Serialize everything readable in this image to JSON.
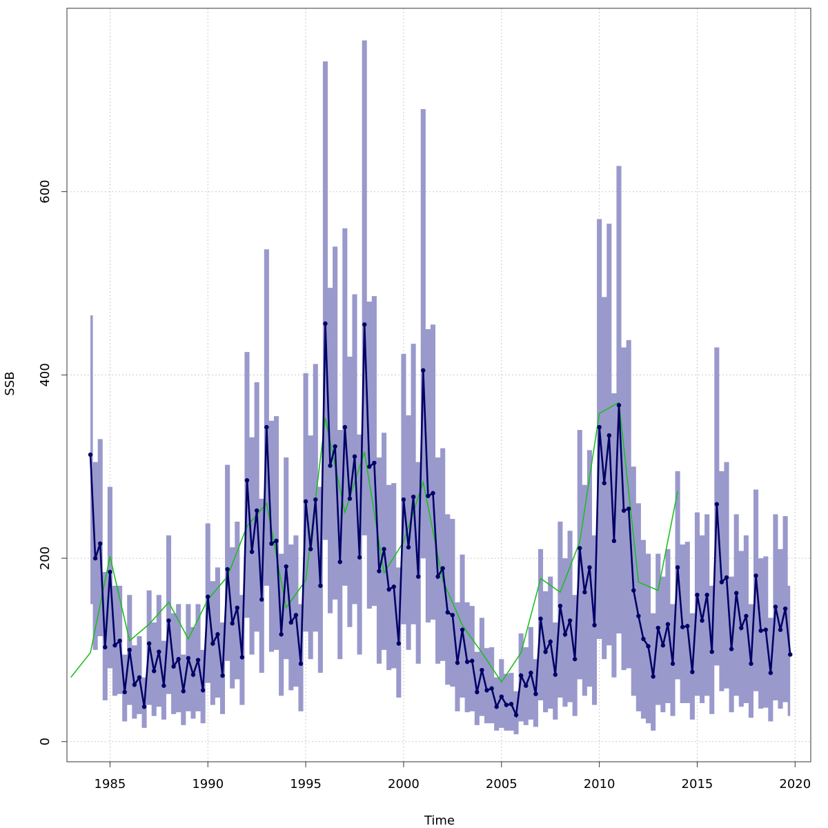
{
  "chart_data": {
    "type": "line",
    "xlabel": "Time",
    "ylabel": "SSB",
    "xlim": [
      1982.8,
      2020.8
    ],
    "ylim": [
      -22,
      800
    ],
    "x_ticks": [
      1985,
      1990,
      1995,
      2000,
      2005,
      2010,
      2015,
      2020
    ],
    "y_ticks": [
      0,
      200,
      400,
      600
    ],
    "grid": true,
    "colors": {
      "estimate": "#000066",
      "band": "#9999cc",
      "reference": "#1ebd1e",
      "grid": "#c8c8c8"
    },
    "series": [
      {
        "role": "estimate",
        "kind": "line+points",
        "x": [
          1984.0,
          1984.25,
          1984.5,
          1984.75,
          1985.0,
          1985.25,
          1985.5,
          1985.75,
          1986.0,
          1986.25,
          1986.5,
          1986.75,
          1987.0,
          1987.25,
          1987.5,
          1987.75,
          1988.0,
          1988.25,
          1988.5,
          1988.75,
          1989.0,
          1989.25,
          1989.5,
          1989.75,
          1990.0,
          1990.25,
          1990.5,
          1990.75,
          1991.0,
          1991.25,
          1991.5,
          1991.75,
          1992.0,
          1992.25,
          1992.5,
          1992.75,
          1993.0,
          1993.25,
          1993.5,
          1993.75,
          1994.0,
          1994.25,
          1994.5,
          1994.75,
          1995.0,
          1995.25,
          1995.5,
          1995.75,
          1996.0,
          1996.25,
          1996.5,
          1996.75,
          1997.0,
          1997.25,
          1997.5,
          1997.75,
          1998.0,
          1998.25,
          1998.5,
          1998.75,
          1999.0,
          1999.25,
          1999.5,
          1999.75,
          2000.0,
          2000.25,
          2000.5,
          2000.75,
          2001.0,
          2001.25,
          2001.5,
          2001.75,
          2002.0,
          2002.25,
          2002.5,
          2002.75,
          2003.0,
          2003.25,
          2003.5,
          2003.75,
          2004.0,
          2004.25,
          2004.5,
          2004.75,
          2005.0,
          2005.25,
          2005.5,
          2005.75,
          2006.0,
          2006.25,
          2006.5,
          2006.75,
          2007.0,
          2007.25,
          2007.5,
          2007.75,
          2008.0,
          2008.25,
          2008.5,
          2008.75,
          2009.0,
          2009.25,
          2009.5,
          2009.75,
          2010.0,
          2010.25,
          2010.5,
          2010.75,
          2011.0,
          2011.25,
          2011.5,
          2011.75,
          2012.0,
          2012.25,
          2012.5,
          2012.75,
          2013.0,
          2013.25,
          2013.5,
          2013.75,
          2014.0,
          2014.25,
          2014.5,
          2014.75,
          2015.0,
          2015.25,
          2015.5,
          2015.75,
          2016.0,
          2016.25,
          2016.5,
          2016.75,
          2017.0,
          2017.25,
          2017.5,
          2017.75,
          2018.0,
          2018.25,
          2018.5,
          2018.75,
          2019.0,
          2019.25,
          2019.5,
          2019.75
        ],
        "y": [
          313,
          200,
          216,
          103,
          185,
          105,
          110,
          54,
          100,
          62,
          70,
          38,
          107,
          77,
          98,
          61,
          132,
          82,
          90,
          55,
          91,
          73,
          89,
          56,
          158,
          107,
          117,
          72,
          188,
          129,
          146,
          92,
          285,
          207,
          252,
          155,
          343,
          216,
          219,
          117,
          191,
          130,
          138,
          85,
          262,
          210,
          264,
          170,
          456,
          301,
          322,
          196,
          343,
          265,
          311,
          201,
          455,
          300,
          304,
          186,
          210,
          166,
          169,
          107,
          264,
          212,
          267,
          180,
          405,
          268,
          271,
          180,
          189,
          141,
          138,
          86,
          122,
          87,
          88,
          54,
          78,
          56,
          58,
          38,
          49,
          40,
          41,
          29,
          72,
          61,
          75,
          52,
          134,
          98,
          109,
          73,
          148,
          117,
          132,
          90,
          211,
          163,
          190,
          127,
          343,
          282,
          334,
          219,
          367,
          252,
          254,
          165,
          137,
          112,
          104,
          71,
          124,
          105,
          128,
          85,
          190,
          125,
          126,
          76,
          160,
          132,
          160,
          98,
          259,
          174,
          179,
          101,
          162,
          124,
          137,
          85,
          181,
          121,
          122,
          75,
          147,
          122,
          145,
          95
        ]
      },
      {
        "role": "band",
        "kind": "area",
        "upper": [
          465,
          305,
          330,
          185,
          278,
          170,
          170,
          95,
          160,
          105,
          115,
          70,
          165,
          130,
          160,
          110,
          225,
          140,
          150,
          95,
          150,
          125,
          150,
          100,
          238,
          175,
          190,
          130,
          302,
          212,
          240,
          160,
          425,
          332,
          392,
          265,
          537,
          350,
          355,
          205,
          310,
          215,
          225,
          150,
          402,
          334,
          412,
          278,
          742,
          495,
          540,
          340,
          560,
          420,
          488,
          335,
          765,
          480,
          486,
          310,
          337,
          280,
          282,
          190,
          423,
          356,
          434,
          305,
          690,
          450,
          455,
          310,
          320,
          248,
          243,
          152,
          204,
          152,
          148,
          98,
          135,
          102,
          103,
          70,
          90,
          74,
          75,
          55,
          118,
          103,
          125,
          90,
          210,
          164,
          180,
          130,
          240,
          200,
          230,
          160,
          340,
          280,
          318,
          225,
          570,
          485,
          565,
          380,
          628,
          430,
          438,
          300,
          260,
          220,
          205,
          140,
          205,
          180,
          210,
          150,
          295,
          215,
          218,
          140,
          250,
          225,
          248,
          170,
          430,
          295,
          305,
          180,
          248,
          208,
          225,
          150,
          275,
          200,
          202,
          135,
          248,
          210,
          246,
          170
        ],
        "lower": [
          150,
          100,
          115,
          45,
          80,
          50,
          52,
          22,
          40,
          25,
          30,
          15,
          40,
          28,
          38,
          24,
          52,
          30,
          32,
          18,
          33,
          25,
          33,
          20,
          64,
          40,
          48,
          30,
          88,
          58,
          68,
          40,
          135,
          95,
          120,
          75,
          170,
          98,
          100,
          50,
          90,
          56,
          60,
          33,
          120,
          90,
          120,
          75,
          220,
          140,
          155,
          90,
          170,
          125,
          150,
          95,
          225,
          145,
          148,
          85,
          100,
          78,
          80,
          48,
          128,
          100,
          128,
          85,
          200,
          130,
          133,
          85,
          88,
          62,
          60,
          33,
          48,
          32,
          33,
          18,
          28,
          20,
          20,
          12,
          15,
          12,
          12,
          8,
          22,
          18,
          24,
          16,
          45,
          32,
          36,
          24,
          48,
          38,
          43,
          28,
          68,
          50,
          60,
          40,
          112,
          90,
          105,
          70,
          118,
          78,
          80,
          50,
          33,
          25,
          20,
          12,
          40,
          32,
          42,
          28,
          68,
          42,
          42,
          24,
          50,
          42,
          50,
          30,
          83,
          55,
          58,
          32,
          50,
          38,
          42,
          26,
          55,
          36,
          37,
          22,
          45,
          36,
          43,
          28
        ]
      },
      {
        "role": "reference",
        "kind": "line",
        "x": [
          1983,
          1984,
          1985,
          1986,
          1987,
          1988,
          1989,
          1990,
          1991,
          1992,
          1993,
          1994,
          1995,
          1996,
          1997,
          1998,
          1999,
          2000,
          2001,
          2002,
          2003,
          2004,
          2005,
          2006,
          2007,
          2008,
          2009,
          2010,
          2011,
          2012,
          2013,
          2014
        ],
        "y": [
          70,
          97,
          202,
          110,
          128,
          152,
          112,
          155,
          180,
          235,
          260,
          146,
          176,
          353,
          250,
          316,
          184,
          218,
          283,
          176,
          127,
          97,
          65,
          97,
          178,
          163,
          218,
          358,
          370,
          174,
          165,
          273
        ]
      }
    ]
  }
}
